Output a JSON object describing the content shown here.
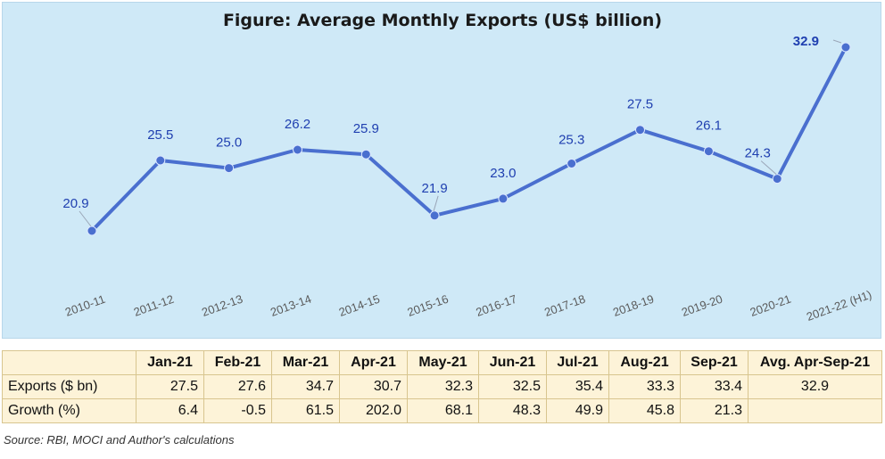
{
  "chart_data": {
    "type": "line",
    "title": "Figure: Average Monthly Exports (US$ billion)",
    "categories": [
      "2010-11",
      "2011-12",
      "2012-13",
      "2013-14",
      "2014-15",
      "2015-16",
      "2016-17",
      "2017-18",
      "2018-19",
      "2019-20",
      "2020-21",
      "2021-22 (H1)"
    ],
    "values": [
      20.9,
      25.5,
      25.0,
      26.2,
      25.9,
      21.9,
      23.0,
      25.3,
      27.5,
      26.1,
      24.3,
      32.9
    ],
    "labels": [
      "20.9",
      "25.5",
      "25.0",
      "26.2",
      "25.9",
      "21.9",
      "23.0",
      "25.3",
      "27.5",
      "26.1",
      "24.3",
      "32.9"
    ],
    "ylim": [
      17,
      36
    ],
    "line_color": "#4a6fcf",
    "label_color": "#1f3fb0",
    "background": "#cfe9f7",
    "xlabel": "",
    "ylabel": ""
  },
  "table": {
    "header": [
      "",
      "Jan-21",
      "Feb-21",
      "Mar-21",
      "Apr-21",
      "May-21",
      "Jun-21",
      "Jul-21",
      "Aug-21",
      "Sep-21",
      "Avg. Apr-Sep-21"
    ],
    "rows": [
      [
        "Exports ($ bn)",
        "27.5",
        "27.6",
        "34.7",
        "30.7",
        "32.3",
        "32.5",
        "35.4",
        "33.3",
        "33.4",
        "32.9"
      ],
      [
        "Growth (%)",
        "6.4",
        "-0.5",
        "61.5",
        "202.0",
        "68.1",
        "48.3",
        "49.9",
        "45.8",
        "21.3",
        ""
      ]
    ]
  },
  "source": "Source: RBI, MOCI and Author's calculations"
}
